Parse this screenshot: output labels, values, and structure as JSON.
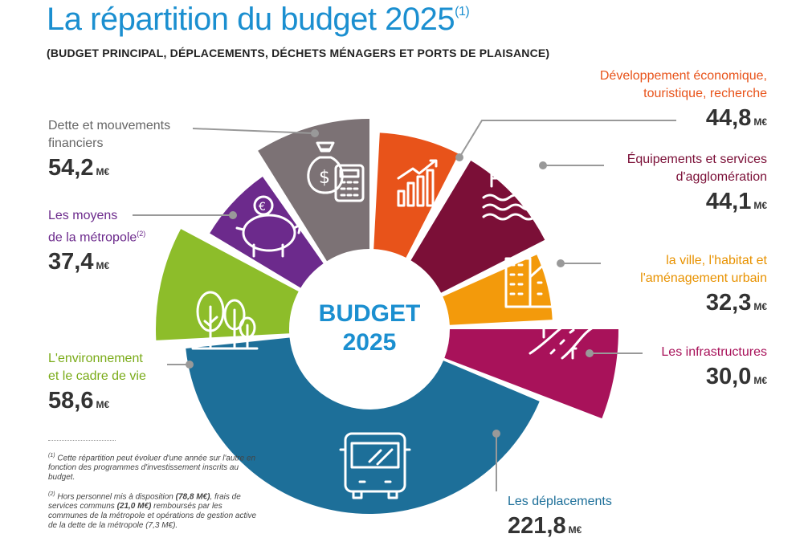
{
  "title": "La répartition du budget 2025",
  "title_sup": "(1)",
  "subtitle": "(BUDGET PRINCIPAL, DÉPLACEMENTS, DÉCHETS MÉNAGERS ET PORTS DE PLAISANCE)",
  "center": {
    "line1": "BUDGET",
    "line2": "2025"
  },
  "unit": "M€",
  "colors": {
    "title": "#1b8fd0",
    "dette": "#7c7275",
    "moyens": "#6c2a8c",
    "environnement": "#8dbd2a",
    "deplacements": "#1d6f99",
    "infrastructures": "#a8125a",
    "ville": "#f39a0b",
    "equipements": "#7b0f37",
    "developpement": "#e8531a"
  },
  "labels": {
    "dette": {
      "name1": "Dette et mouvements",
      "name2": "financiers",
      "value": "54,2"
    },
    "moyens": {
      "name1": "Les moyens",
      "name2": "de la métropole",
      "sup": "(2)",
      "value": "37,4"
    },
    "environnement": {
      "name1": "L'environnement",
      "name2": "et le cadre de vie",
      "value": "58,6"
    },
    "deplacements": {
      "name1": "Les déplacements",
      "value": "221,8"
    },
    "infrastructures": {
      "name1": "Les infrastructures",
      "value": "30,0"
    },
    "ville": {
      "name1": "la ville, l'habitat et",
      "name2": "l'aménagement urbain",
      "value": "32,3"
    },
    "equipements": {
      "name1": "Équipements et services",
      "name2": "d'agglomération",
      "value": "44,1"
    },
    "developpement": {
      "name1": "Développement économique,",
      "name2": "touristique, recherche",
      "value": "44,8"
    }
  },
  "notes": {
    "n1_mark": "(1)",
    "n1": "Cette répartition peut évoluer d'une année sur l'autre en fonction des programmes d'investissement inscrits au budget.",
    "n2_mark": "(2)",
    "n2_a": "Hors personnel mis à disposition ",
    "n2_b": "(78,8 M€)",
    "n2_c": ", frais de services communs ",
    "n2_d": "(21,0 M€)",
    "n2_e": " remboursés par les communes de la métropole et opérations de gestion active de la dette de la métropole (7,3 M€)."
  },
  "chart_data": {
    "type": "pie",
    "title": "La répartition du budget 2025",
    "unit": "M€",
    "categories": [
      "Développement économique, touristique, recherche",
      "Équipements et services d'agglomération",
      "la ville, l'habitat et l'aménagement urbain",
      "Les infrastructures",
      "Les déplacements",
      "L'environnement et le cadre de vie",
      "Les moyens de la métropole",
      "Dette et mouvements financiers"
    ],
    "values": [
      44.8,
      44.1,
      32.3,
      30.0,
      221.8,
      58.6,
      37.4,
      54.2
    ],
    "keys": [
      "developpement",
      "equipements",
      "ville",
      "infrastructures",
      "deplacements",
      "environnement",
      "moyens",
      "dette"
    ]
  }
}
